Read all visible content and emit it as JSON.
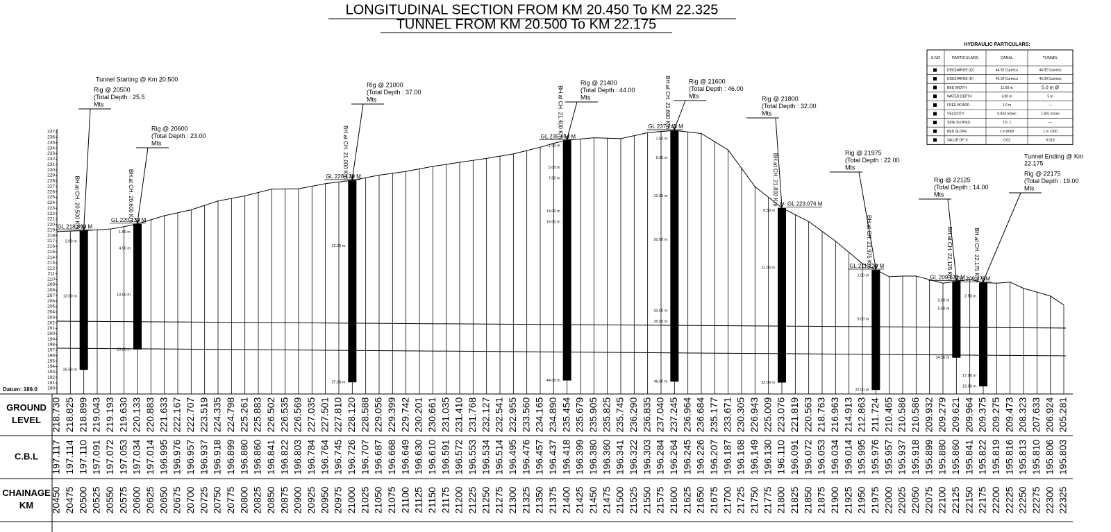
{
  "titles": [
    "LONGITUDINAL SECTION FROM KM 20.450  To  KM  22.325",
    "TUNNEL FROM KM 20.500  To  KM  22.175"
  ],
  "profile": {
    "datum_label": "Datum: 189.0",
    "row_labels": [
      "GROUND LEVEL",
      "C.B.L",
      "CHAINAGE KM"
    ],
    "level_scale": [
      190,
      191,
      192,
      193,
      194,
      195,
      196,
      197,
      198,
      199,
      200,
      201,
      202,
      203,
      204,
      205,
      206,
      207,
      208,
      209,
      210,
      211,
      212,
      213,
      214,
      215,
      216,
      217,
      218,
      219,
      220,
      221,
      222,
      223,
      224,
      225,
      226,
      227,
      228,
      229,
      230,
      231,
      232,
      233,
      234,
      235,
      236,
      237
    ],
    "chainage": [
      "20450",
      "20475",
      "20500",
      "20525",
      "20550",
      "20575",
      "20600",
      "20625",
      "20650",
      "20675",
      "20700",
      "20725",
      "20750",
      "20775",
      "20800",
      "20825",
      "20850",
      "20875",
      "20900",
      "20925",
      "20950",
      "20975",
      "21000",
      "21025",
      "21050",
      "21075",
      "21100",
      "21125",
      "21150",
      "21175",
      "21200",
      "21225",
      "21250",
      "21275",
      "21300",
      "21325",
      "21350",
      "21375",
      "21400",
      "21425",
      "21450",
      "21475",
      "21500",
      "21525",
      "21550",
      "21575",
      "21600",
      "21625",
      "21650",
      "21675",
      "21700",
      "21725",
      "21750",
      "21775",
      "21800",
      "21825",
      "21850",
      "21875",
      "21900",
      "21925",
      "21950",
      "21975",
      "22000",
      "22025",
      "22050",
      "22075",
      "22100",
      "22125",
      "22150",
      "22175",
      "22200",
      "22225",
      "22250",
      "22275",
      "22300",
      "22325"
    ],
    "ground_level": [
      "218.730",
      "218.825",
      "218.899",
      "219.043",
      "219.193",
      "219.630",
      "220.133",
      "220.883",
      "221.633",
      "222.167",
      "222.707",
      "223.519",
      "224.335",
      "224.798",
      "225.261",
      "225.883",
      "226.502",
      "226.535",
      "226.569",
      "227.035",
      "227.501",
      "227.810",
      "228.120",
      "228.588",
      "229.056",
      "229.399",
      "229.742",
      "230.201",
      "230.661",
      "231.035",
      "231.410",
      "231.768",
      "232.127",
      "232.541",
      "232.955",
      "233.560",
      "234.165",
      "234.890",
      "235.454",
      "235.679",
      "235.905",
      "235.825",
      "235.745",
      "236.290",
      "236.835",
      "237.040",
      "237.245",
      "236.964",
      "236.684",
      "235.177",
      "233.671",
      "230.305",
      "226.943",
      "225.009",
      "223.076",
      "221.819",
      "220.563",
      "218.763",
      "216.963",
      "214.913",
      "212.863",
      "211.724",
      "210.465",
      "210.586",
      "210.586",
      "209.932",
      "209.279",
      "209.621",
      "209.964",
      "209.375",
      "209.275",
      "209.473",
      "208.323",
      "207.633",
      "206.924",
      "205.281"
    ],
    "cbl": [
      "197.117",
      "197.114",
      "197.110",
      "197.091",
      "197.072",
      "197.053",
      "197.034",
      "197.014",
      "196.995",
      "196.976",
      "196.957",
      "196.937",
      "196.918",
      "196.899",
      "196.880",
      "196.860",
      "196.841",
      "196.822",
      "196.803",
      "196.784",
      "196.764",
      "196.745",
      "196.726",
      "196.707",
      "196.687",
      "196.668",
      "196.649",
      "196.630",
      "196.610",
      "196.591",
      "196.572",
      "196.553",
      "196.534",
      "196.514",
      "196.495",
      "196.476",
      "196.457",
      "196.437",
      "196.418",
      "196.399",
      "196.380",
      "196.360",
      "196.341",
      "196.322",
      "196.303",
      "196.284",
      "196.264",
      "196.245",
      "196.226",
      "196.207",
      "196.187",
      "196.168",
      "196.149",
      "196.130",
      "196.110",
      "196.091",
      "196.072",
      "196.053",
      "196.034",
      "196.014",
      "195.995",
      "195.976",
      "195.957",
      "195.937",
      "195.918",
      "195.899",
      "195.880",
      "195.860",
      "195.841",
      "195.822",
      "195.819",
      "195.816",
      "195.813",
      "195.810",
      "195.806",
      "195.803"
    ]
  },
  "tunnel_start": "Tunnel Starting @ Km 20.500",
  "tunnel_end": [
    "Tunnel Ending @ Km",
    "22.175"
  ],
  "boreholes": [
    {
      "rig": [
        "Rig @ 20500",
        "(Total Depth : 25.5",
        "Mts"
      ],
      "bh": "BH.at CH. 20,500 Km",
      "gl": "GL 218.899 M",
      "layers": [
        {
          "depth": 2,
          "label": "2.00 m"
        },
        {
          "depth": 12,
          "label": "12.00 m"
        },
        {
          "depth": 25.5,
          "label": "25.50 m"
        }
      ]
    },
    {
      "rig": [
        "Rig @ 20600",
        "(Total Depth : 23.00",
        "Mts"
      ],
      "bh": "BH.at CH. 20,600 Km",
      "gl": "GL 220.133 M",
      "layers": [
        {
          "depth": 1.5,
          "label": "1.50 m"
        },
        {
          "depth": 4.5,
          "label": "4.50 m"
        },
        {
          "depth": 13,
          "label": "13.00 m"
        },
        {
          "depth": 23,
          "label": "23.00 m"
        }
      ]
    },
    {
      "rig": [
        "Rig @ 21000",
        "(Total Depth : 37.00",
        "Mts"
      ],
      "bh": "BH.at CH. 21,000 Km",
      "gl": "GL 228.120 M",
      "layers": [
        {
          "depth": 12,
          "label": "12.00 m"
        },
        {
          "depth": 37,
          "label": "37.00 m"
        }
      ]
    },
    {
      "rig": [
        "Rig @ 21400",
        "(Total Depth : 44.00",
        "Mts"
      ],
      "bh": "BH.at CH. 21,400 Km",
      "gl": "GL 235.454 M",
      "layers": [
        {
          "depth": 1,
          "label": "1.00 m"
        },
        {
          "depth": 5,
          "label": "5.00 m"
        },
        {
          "depth": 7,
          "label": "7.00 m"
        },
        {
          "depth": 13,
          "label": "13.00 m"
        },
        {
          "depth": 15,
          "label": "15.00 m"
        },
        {
          "depth": 44,
          "label": "44.00 m"
        }
      ]
    },
    {
      "rig": [
        "Rig @ 21600",
        "(Total Depth : 46.00",
        "Mts"
      ],
      "bh": "BH.at CH. 21,600 Km",
      "gl": "GL 237.245 M",
      "layers": [
        {
          "depth": 1.5,
          "label": "1.50 m"
        },
        {
          "depth": 5,
          "label": "5.00 m"
        },
        {
          "depth": 12,
          "label": "12.00 m"
        },
        {
          "depth": 20,
          "label": "20.00 m"
        },
        {
          "depth": 33,
          "label": "33.00 m"
        },
        {
          "depth": 35,
          "label": "35.00 m"
        },
        {
          "depth": 46,
          "label": "46.00 m"
        }
      ]
    },
    {
      "rig": [
        "Rig @ 21800",
        "(Total Depth : 32.00",
        "Mts"
      ],
      "bh": "BH.at CH. 21,800 Km",
      "gl": "GL 223.076 M",
      "layers": [
        {
          "depth": 0.5,
          "label": "0.50 m"
        },
        {
          "depth": 11,
          "label": "11.00 m"
        },
        {
          "depth": 32,
          "label": "32.00 m"
        }
      ]
    },
    {
      "rig": [
        "Rig @ 21975",
        "(Total Depth : 22.00",
        "Mts"
      ],
      "bh": "BH.at CH. 21,975 Km",
      "gl": "GL 211.724 M",
      "layers": [
        {
          "depth": 1,
          "label": "1.00 m"
        },
        {
          "depth": 9,
          "label": "9.00 m"
        },
        {
          "depth": 22,
          "label": "22.00 m"
        }
      ]
    },
    {
      "rig": [
        "Rig @ 22125",
        "(Total Depth : 14.00",
        "Mts"
      ],
      "bh": "BH.at CH. 22,125 Km",
      "gl": "GL 209.621 M",
      "layers": [
        {
          "depth": 3.5,
          "label": "3.50 m"
        },
        {
          "depth": 5,
          "label": "5.00 m"
        },
        {
          "depth": 14,
          "label": "14.00 m"
        }
      ]
    },
    {
      "rig": [
        "Rig @ 22175",
        "(Total Depth : 19.00",
        "Mts"
      ],
      "bh": "BH.at CH. 22,175 Km",
      "gl": "GL 209.375M",
      "layers": [
        {
          "depth": 2.5,
          "label": "2.50 m"
        },
        {
          "depth": 17,
          "label": "17.00 m"
        },
        {
          "depth": 19,
          "label": "19.00 m"
        }
      ]
    }
  ],
  "hydraulic": {
    "title": "HYDRAULIC PARTICULARS:",
    "header": [
      "S.NO",
      "PARTICULARS",
      "CANAL",
      "TUNNEL"
    ],
    "rows": [
      [
        "DISCHARGE (Q)",
        "44.92 Cumecs",
        "44.92 Cumecs"
      ],
      [
        "DISCHARGE (D)",
        "45.00 Cumecs",
        "45.00 Cumecs"
      ],
      [
        "BED WIDTH",
        "11.60 m",
        "5.0 m Ø"
      ],
      [
        "WATER DEPTH",
        "3.00 m",
        "5 m"
      ],
      [
        "FREE BOARD",
        "1.0 m",
        "—"
      ],
      [
        "VELOCITY",
        "0.933 m/sec",
        "1.801 m/sec"
      ],
      [
        "SIDE SLOPES",
        "1.5: 1",
        "—"
      ],
      [
        "BED SLOPE",
        "1 in 8000",
        "1 in 1300"
      ],
      [
        "VALUE OF 'n'",
        "0.02",
        "0.018"
      ]
    ]
  }
}
